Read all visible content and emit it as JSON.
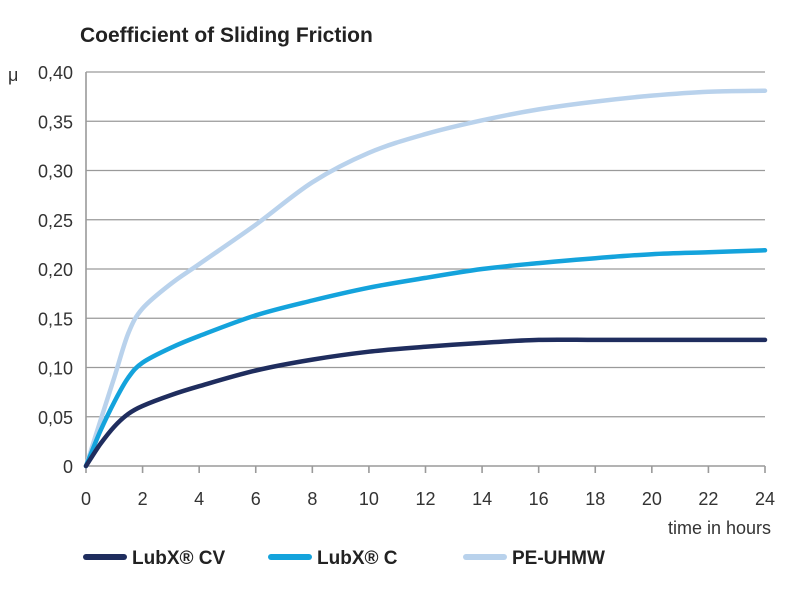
{
  "chart_data": {
    "type": "line",
    "title": "Coefficient of Sliding Friction",
    "xlabel": "time in hours",
    "ylabel": "μ",
    "xlim": [
      0,
      24
    ],
    "ylim": [
      0,
      0.4
    ],
    "x_ticks": [
      "0",
      "2",
      "4",
      "6",
      "8",
      "10",
      "12",
      "14",
      "16",
      "18",
      "20",
      "22",
      "24"
    ],
    "y_ticks": [
      "0",
      "0,05",
      "0,10",
      "0,15",
      "0,20",
      "0,25",
      "0,30",
      "0,35",
      "0,40"
    ],
    "grid": true,
    "legend_position": "bottom",
    "series": [
      {
        "name": "LubX® CV",
        "color": "#1f2d5e",
        "x": [
          0,
          0.5,
          1,
          1.5,
          2,
          3,
          4,
          6,
          8,
          10,
          12,
          14,
          16,
          18,
          20,
          22,
          24
        ],
        "y": [
          0,
          0.022,
          0.04,
          0.053,
          0.061,
          0.072,
          0.081,
          0.097,
          0.108,
          0.116,
          0.121,
          0.125,
          0.128,
          0.128,
          0.128,
          0.128,
          0.128
        ]
      },
      {
        "name": "LubX® C",
        "color": "#14a3dc",
        "x": [
          0,
          0.5,
          1,
          1.5,
          2,
          3,
          4,
          6,
          8,
          10,
          12,
          14,
          16,
          18,
          20,
          22,
          24
        ],
        "y": [
          0,
          0.035,
          0.065,
          0.09,
          0.105,
          0.12,
          0.132,
          0.153,
          0.168,
          0.181,
          0.191,
          0.2,
          0.206,
          0.211,
          0.215,
          0.217,
          0.219
        ]
      },
      {
        "name": "PE-UHMW",
        "color": "#b9d2ec",
        "x": [
          0,
          0.5,
          1,
          1.5,
          2,
          3,
          4,
          6,
          8,
          10,
          12,
          14,
          16,
          18,
          20,
          22,
          24
        ],
        "y": [
          0,
          0.045,
          0.09,
          0.135,
          0.16,
          0.185,
          0.205,
          0.245,
          0.288,
          0.318,
          0.337,
          0.351,
          0.362,
          0.37,
          0.376,
          0.38,
          0.381
        ]
      }
    ]
  }
}
